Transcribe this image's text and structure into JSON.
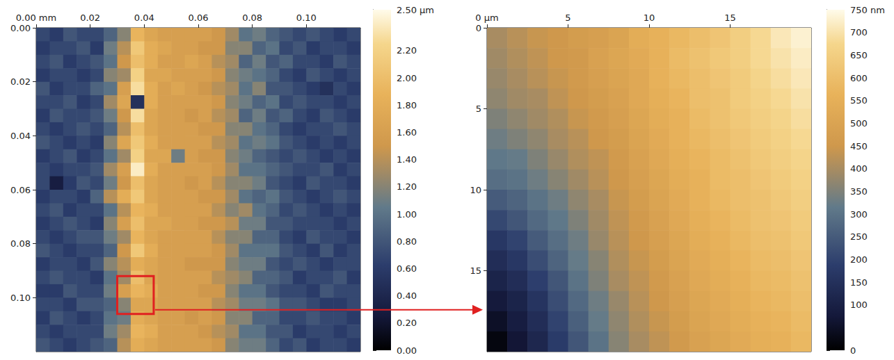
{
  "chart_data": [
    {
      "type": "heatmap",
      "xlim": [
        0,
        0.12
      ],
      "ylim": [
        0,
        0.12
      ],
      "xticks": [
        {
          "value": 0,
          "label": "0.00 mm"
        },
        {
          "value": 0.02,
          "label": "0.02"
        },
        {
          "value": 0.04,
          "label": "0.04"
        },
        {
          "value": 0.06,
          "label": "0.06"
        },
        {
          "value": 0.08,
          "label": "0.08"
        },
        {
          "value": 0.1,
          "label": "0.10"
        }
      ],
      "yticks": [
        {
          "value": 0,
          "label": "0.00"
        },
        {
          "value": 0.02,
          "label": "0.02"
        },
        {
          "value": 0.04,
          "label": "0.04"
        },
        {
          "value": 0.06,
          "label": "0.06"
        },
        {
          "value": 0.08,
          "label": "0.08"
        },
        {
          "value": 0.1,
          "label": "0.10"
        }
      ],
      "color_range": [
        0,
        2.5
      ],
      "color_ticks": [
        {
          "value": 0,
          "label": "0.00"
        },
        {
          "value": 0.2,
          "label": "0.20"
        },
        {
          "value": 0.4,
          "label": "0.40"
        },
        {
          "value": 0.6,
          "label": "0.60"
        },
        {
          "value": 0.8,
          "label": "0.80"
        },
        {
          "value": 1,
          "label": "1.00"
        },
        {
          "value": 1.2,
          "label": "1.20"
        },
        {
          "value": 1.4,
          "label": "1.40"
        },
        {
          "value": 1.6,
          "label": "1.60"
        },
        {
          "value": 1.8,
          "label": "1.80"
        },
        {
          "value": 2,
          "label": "2.00"
        },
        {
          "value": 2.2,
          "label": "2.20"
        },
        {
          "value": 2.5,
          "label": "2.50 µm"
        }
      ],
      "zoom_region": {
        "x": [
          0.03,
          0.0435
        ],
        "y": [
          0.092,
          0.106
        ]
      },
      "cells": [
        [
          0.7,
          0.6,
          0.8,
          0.7,
          0.7,
          0.9,
          1.2,
          1.9,
          1.7,
          1.6,
          1.6,
          1.6,
          1.6,
          1.5,
          1.3,
          1.0,
          1.1,
          0.9,
          0.8,
          0.7,
          0.8,
          0.7,
          0.6,
          0.7
        ],
        [
          0.6,
          0.7,
          0.7,
          0.8,
          0.6,
          1.1,
          1.4,
          2.1,
          1.8,
          1.7,
          1.6,
          1.6,
          1.5,
          1.5,
          1.2,
          1.2,
          0.9,
          1.0,
          0.7,
          0.8,
          0.6,
          0.7,
          0.7,
          0.6
        ],
        [
          0.7,
          0.8,
          0.6,
          0.7,
          0.8,
          1.0,
          1.5,
          2.0,
          1.8,
          1.6,
          1.6,
          1.7,
          1.6,
          1.4,
          1.3,
          0.9,
          1.1,
          0.8,
          0.9,
          0.7,
          0.7,
          0.6,
          0.8,
          0.7
        ],
        [
          0.6,
          0.7,
          0.7,
          0.6,
          0.7,
          1.2,
          1.3,
          2.2,
          1.7,
          1.7,
          1.6,
          1.6,
          1.6,
          1.5,
          1.2,
          1.1,
          1.0,
          0.9,
          0.7,
          0.6,
          0.8,
          0.7,
          0.6,
          0.7
        ],
        [
          0.8,
          0.6,
          0.7,
          0.7,
          0.9,
          1.0,
          1.6,
          2.3,
          1.8,
          1.6,
          1.7,
          1.6,
          1.5,
          1.4,
          1.3,
          1.0,
          1.2,
          0.8,
          0.8,
          0.7,
          0.6,
          0.5,
          0.7,
          0.6
        ],
        [
          0.7,
          0.7,
          0.8,
          0.6,
          0.7,
          1.3,
          1.7,
          0.5,
          1.8,
          1.6,
          1.6,
          1.6,
          1.6,
          1.5,
          1.2,
          1.1,
          0.9,
          1.0,
          0.7,
          0.8,
          0.7,
          0.7,
          0.6,
          0.7
        ],
        [
          0.6,
          0.8,
          0.7,
          0.7,
          0.8,
          1.1,
          1.5,
          2.3,
          1.7,
          1.6,
          1.6,
          1.5,
          1.6,
          1.4,
          1.3,
          0.9,
          1.1,
          0.8,
          0.9,
          0.7,
          0.6,
          0.8,
          0.7,
          0.6
        ],
        [
          0.7,
          0.6,
          0.7,
          0.8,
          0.7,
          0.9,
          1.4,
          2.0,
          1.7,
          1.6,
          1.6,
          1.6,
          1.5,
          1.5,
          1.2,
          1.2,
          1.0,
          0.9,
          0.7,
          0.6,
          0.7,
          0.7,
          0.8,
          0.7
        ],
        [
          0.8,
          0.7,
          0.6,
          0.7,
          0.6,
          1.2,
          1.7,
          2.1,
          1.8,
          1.6,
          1.6,
          1.6,
          1.6,
          1.4,
          1.3,
          1.0,
          1.1,
          1.0,
          0.8,
          0.7,
          0.6,
          0.7,
          0.6,
          0.7
        ],
        [
          0.6,
          0.7,
          0.8,
          0.6,
          0.7,
          1.0,
          1.3,
          2.2,
          1.7,
          1.7,
          1.1,
          1.6,
          1.5,
          1.5,
          1.2,
          1.1,
          0.9,
          0.8,
          0.7,
          0.8,
          0.7,
          0.6,
          0.7,
          0.6
        ],
        [
          0.7,
          0.6,
          0.7,
          0.7,
          0.8,
          1.3,
          1.6,
          2.4,
          1.8,
          1.6,
          1.6,
          1.6,
          1.6,
          1.5,
          1.3,
          1.0,
          1.0,
          0.9,
          0.8,
          0.7,
          0.7,
          0.8,
          0.6,
          0.7
        ],
        [
          0.7,
          0.3,
          0.6,
          0.8,
          0.7,
          1.1,
          1.5,
          2.0,
          1.7,
          1.6,
          1.6,
          1.5,
          1.6,
          1.4,
          1.2,
          1.2,
          1.1,
          0.8,
          0.7,
          0.6,
          0.8,
          0.7,
          0.7,
          0.6
        ],
        [
          0.6,
          0.7,
          0.7,
          0.6,
          0.9,
          1.4,
          1.8,
          2.1,
          1.7,
          1.6,
          1.6,
          1.6,
          1.5,
          1.5,
          1.3,
          1.0,
          0.9,
          1.0,
          0.8,
          0.7,
          0.6,
          0.7,
          0.8,
          0.7
        ],
        [
          0.7,
          0.8,
          0.6,
          0.7,
          0.7,
          1.0,
          1.4,
          1.9,
          1.8,
          1.6,
          1.6,
          1.6,
          1.6,
          1.4,
          1.2,
          1.3,
          1.0,
          0.9,
          0.7,
          0.8,
          0.7,
          0.6,
          0.7,
          0.6
        ],
        [
          0.6,
          0.7,
          0.8,
          0.7,
          0.6,
          1.2,
          1.6,
          2.0,
          1.7,
          1.7,
          1.6,
          1.6,
          1.5,
          1.5,
          1.4,
          1.1,
          1.1,
          0.8,
          0.8,
          0.7,
          0.7,
          0.7,
          0.6,
          0.7
        ],
        [
          0.7,
          0.6,
          0.7,
          0.8,
          0.8,
          1.1,
          1.3,
          1.9,
          1.7,
          1.6,
          1.6,
          1.6,
          1.6,
          1.4,
          1.2,
          1.2,
          0.9,
          0.9,
          0.7,
          0.6,
          0.8,
          0.7,
          0.7,
          0.6
        ],
        [
          0.8,
          0.7,
          0.6,
          0.7,
          0.7,
          0.9,
          1.5,
          2.1,
          1.8,
          1.6,
          1.6,
          1.6,
          1.6,
          1.5,
          1.3,
          1.0,
          1.0,
          1.0,
          0.8,
          0.7,
          0.6,
          0.8,
          0.6,
          0.7
        ],
        [
          0.6,
          0.7,
          0.7,
          0.6,
          0.8,
          1.2,
          1.4,
          1.8,
          1.7,
          1.6,
          1.6,
          1.5,
          1.5,
          1.5,
          1.2,
          1.1,
          1.1,
          0.8,
          0.7,
          0.8,
          0.7,
          0.6,
          0.7,
          0.7
        ],
        [
          0.7,
          0.8,
          0.7,
          0.7,
          0.6,
          1.0,
          1.3,
          2.0,
          1.7,
          1.6,
          1.6,
          1.6,
          1.6,
          1.4,
          1.3,
          1.2,
          0.9,
          0.9,
          0.8,
          0.6,
          0.7,
          0.7,
          0.8,
          0.6
        ],
        [
          0.6,
          0.6,
          0.8,
          0.7,
          0.7,
          1.1,
          1.6,
          1.9,
          1.8,
          1.6,
          1.6,
          1.6,
          1.5,
          1.5,
          1.2,
          1.0,
          1.0,
          0.8,
          0.7,
          0.7,
          0.6,
          0.8,
          0.7,
          0.7
        ],
        [
          0.7,
          0.7,
          0.6,
          0.8,
          0.8,
          0.9,
          1.2,
          1.7,
          1.7,
          1.6,
          1.6,
          1.6,
          1.6,
          1.4,
          1.3,
          1.1,
          1.1,
          1.0,
          0.8,
          0.8,
          0.7,
          0.6,
          0.6,
          0.7
        ],
        [
          0.6,
          0.8,
          0.7,
          0.6,
          0.7,
          1.0,
          1.1,
          1.8,
          1.7,
          1.6,
          1.6,
          1.5,
          1.6,
          1.5,
          1.2,
          1.2,
          0.9,
          0.9,
          0.7,
          0.7,
          0.8,
          0.7,
          0.7,
          0.6
        ],
        [
          0.7,
          0.6,
          0.7,
          0.7,
          0.7,
          1.1,
          1.3,
          1.9,
          1.8,
          1.6,
          1.6,
          1.6,
          1.5,
          1.4,
          1.3,
          1.0,
          1.0,
          0.8,
          0.8,
          0.6,
          0.7,
          0.7,
          0.6,
          0.7
        ],
        [
          0.8,
          0.7,
          0.6,
          0.7,
          0.8,
          0.9,
          1.4,
          1.8,
          1.7,
          1.6,
          1.6,
          1.6,
          1.6,
          1.5,
          1.2,
          1.1,
          1.1,
          0.9,
          0.7,
          0.8,
          0.6,
          0.7,
          0.7,
          0.6
        ]
      ]
    },
    {
      "type": "heatmap",
      "xlim": [
        0,
        20
      ],
      "ylim": [
        0,
        20
      ],
      "xticks": [
        {
          "value": 0,
          "label": "0 µm"
        },
        5,
        10,
        15
      ],
      "yticks": [
        0,
        5,
        10,
        15
      ],
      "color_range": [
        0,
        750
      ],
      "color_ticks": [
        0,
        100,
        150,
        200,
        250,
        300,
        350,
        400,
        450,
        500,
        550,
        600,
        650,
        700,
        {
          "value": 750,
          "label": "750 nm"
        }
      ],
      "cells": [
        [
          400,
          420,
          440,
          450,
          470,
          480,
          500,
          540,
          560,
          580,
          600,
          620,
          650,
          680,
          710,
          730
        ],
        [
          390,
          410,
          430,
          450,
          460,
          490,
          510,
          530,
          560,
          590,
          610,
          630,
          650,
          680,
          700,
          720
        ],
        [
          380,
          400,
          420,
          440,
          460,
          480,
          500,
          520,
          560,
          580,
          600,
          620,
          640,
          670,
          690,
          710
        ],
        [
          370,
          390,
          400,
          430,
          450,
          470,
          490,
          520,
          550,
          570,
          600,
          610,
          640,
          660,
          680,
          700
        ],
        [
          350,
          370,
          390,
          410,
          440,
          460,
          480,
          510,
          540,
          560,
          590,
          610,
          630,
          650,
          670,
          690
        ],
        [
          330,
          350,
          370,
          400,
          420,
          450,
          470,
          500,
          530,
          560,
          580,
          600,
          620,
          640,
          660,
          680
        ],
        [
          310,
          320,
          350,
          380,
          410,
          430,
          460,
          490,
          520,
          550,
          570,
          590,
          610,
          630,
          650,
          670
        ],
        [
          290,
          300,
          330,
          360,
          390,
          420,
          450,
          480,
          510,
          540,
          560,
          590,
          600,
          620,
          640,
          660
        ],
        [
          250,
          270,
          300,
          330,
          370,
          400,
          440,
          470,
          500,
          530,
          560,
          580,
          600,
          610,
          630,
          650
        ],
        [
          210,
          240,
          280,
          310,
          350,
          390,
          430,
          460,
          490,
          520,
          550,
          570,
          590,
          610,
          620,
          640
        ],
        [
          170,
          200,
          250,
          290,
          330,
          380,
          420,
          450,
          480,
          510,
          540,
          560,
          580,
          600,
          610,
          630
        ],
        [
          140,
          170,
          220,
          270,
          320,
          360,
          410,
          440,
          470,
          500,
          530,
          550,
          570,
          590,
          600,
          620
        ],
        [
          110,
          140,
          190,
          240,
          300,
          350,
          400,
          430,
          460,
          490,
          520,
          540,
          560,
          580,
          590,
          610
        ],
        [
          80,
          110,
          160,
          220,
          280,
          330,
          380,
          420,
          450,
          480,
          510,
          530,
          550,
          570,
          580,
          600
        ],
        [
          50,
          90,
          140,
          200,
          260,
          320,
          370,
          410,
          440,
          470,
          500,
          520,
          540,
          560,
          570,
          590
        ],
        [
          20,
          70,
          120,
          180,
          240,
          300,
          360,
          400,
          430,
          460,
          490,
          510,
          530,
          550,
          560,
          580
        ]
      ]
    }
  ]
}
